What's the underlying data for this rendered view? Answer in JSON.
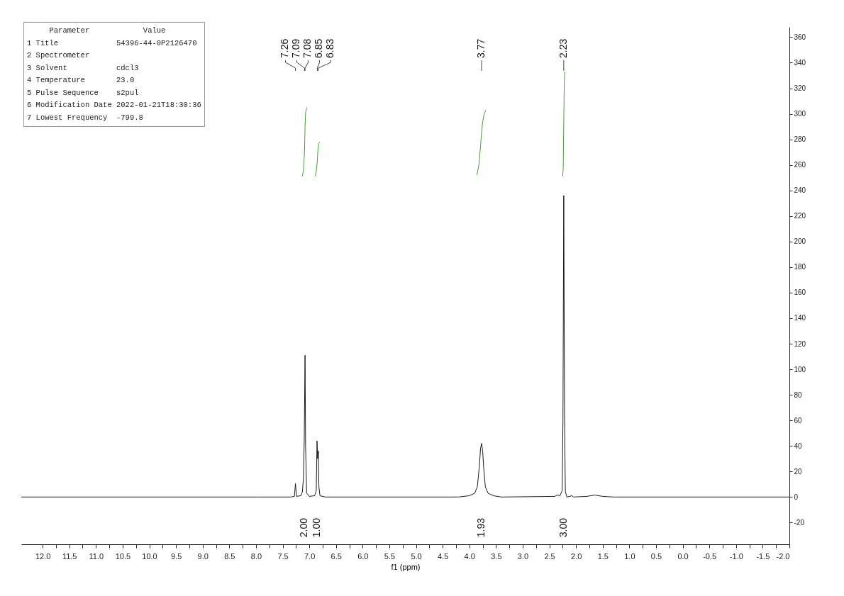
{
  "chart_data": {
    "type": "line",
    "xlabel": "f1 (ppm)",
    "xlim": [
      12.4,
      -2.0
    ],
    "ylim": [
      -37,
      368
    ],
    "xticks": [
      {
        "value": 12,
        "label": "12.0"
      },
      {
        "value": 11.75,
        "label": null
      },
      {
        "value": 11.5,
        "label": "11.5"
      },
      {
        "value": 11.25,
        "label": null
      },
      {
        "value": 11,
        "label": "11.0"
      },
      {
        "value": 10.75,
        "label": null
      },
      {
        "value": 10.5,
        "label": "10.5"
      },
      {
        "value": 10.25,
        "label": null
      },
      {
        "value": 10,
        "label": "10.0"
      },
      {
        "value": 9.75,
        "label": null
      },
      {
        "value": 9.5,
        "label": "9.5"
      },
      {
        "value": 9.25,
        "label": null
      },
      {
        "value": 9,
        "label": "9.0"
      },
      {
        "value": 8.75,
        "label": null
      },
      {
        "value": 8.5,
        "label": "8.5"
      },
      {
        "value": 8.25,
        "label": null
      },
      {
        "value": 8,
        "label": "8.0"
      },
      {
        "value": 7.75,
        "label": null
      },
      {
        "value": 7.5,
        "label": "7.5"
      },
      {
        "value": 7.25,
        "label": null
      },
      {
        "value": 7,
        "label": "7.0"
      },
      {
        "value": 6.75,
        "label": null
      },
      {
        "value": 6.5,
        "label": "6.5"
      },
      {
        "value": 6.25,
        "label": null
      },
      {
        "value": 6,
        "label": "6.0"
      },
      {
        "value": 5.75,
        "label": null
      },
      {
        "value": 5.5,
        "label": "5.5"
      },
      {
        "value": 5.25,
        "label": null
      },
      {
        "value": 5,
        "label": "5.0"
      },
      {
        "value": 4.75,
        "label": null
      },
      {
        "value": 4.5,
        "label": "4.5"
      },
      {
        "value": 4.25,
        "label": null
      },
      {
        "value": 4,
        "label": "4.0"
      },
      {
        "value": 3.75,
        "label": null
      },
      {
        "value": 3.5,
        "label": "3.5"
      },
      {
        "value": 3.25,
        "label": null
      },
      {
        "value": 3,
        "label": "3.0"
      },
      {
        "value": 2.75,
        "label": null
      },
      {
        "value": 2.5,
        "label": "2.5"
      },
      {
        "value": 2.25,
        "label": null
      },
      {
        "value": 2,
        "label": "2.0"
      },
      {
        "value": 1.75,
        "label": null
      },
      {
        "value": 1.5,
        "label": "1.5"
      },
      {
        "value": 1.25,
        "label": null
      },
      {
        "value": 1,
        "label": "1.0"
      },
      {
        "value": 0.75,
        "label": null
      },
      {
        "value": 0.5,
        "label": "0.5"
      },
      {
        "value": 0.25,
        "label": null
      },
      {
        "value": 0,
        "label": "0.0"
      },
      {
        "value": -0.25,
        "label": null
      },
      {
        "value": -0.5,
        "label": "-0.5"
      },
      {
        "value": -0.75,
        "label": null
      },
      {
        "value": -1,
        "label": "-1.0"
      },
      {
        "value": -1.25,
        "label": null
      },
      {
        "value": -1.5,
        "label": "-1.5"
      },
      {
        "value": -1.75,
        "label": null
      },
      {
        "value": -2,
        "label": "-2.0"
      }
    ],
    "yticks": [
      -20,
      0,
      20,
      40,
      60,
      80,
      100,
      120,
      140,
      160,
      180,
      200,
      220,
      240,
      260,
      280,
      300,
      320,
      340,
      360
    ],
    "grid": false,
    "series": [
      {
        "color": "#1a1a1a",
        "x": [
          12.4,
          8.0,
          7.35,
          7.28,
          7.26,
          7.24,
          7.16,
          7.13,
          7.11,
          7.095,
          7.08,
          7.07,
          7.05,
          7.0,
          6.9,
          6.87,
          6.855,
          6.845,
          6.83,
          6.82,
          6.8,
          6.7,
          4.2,
          4.0,
          3.9,
          3.85,
          3.81,
          3.79,
          3.77,
          3.75,
          3.73,
          3.7,
          3.65,
          3.55,
          3.4,
          2.4,
          2.35,
          2.3,
          2.26,
          2.245,
          2.23,
          2.215,
          2.2,
          2.17,
          2.07,
          2.05,
          1.8,
          1.65,
          1.5,
          1.3,
          -2.0
        ],
        "values": [
          0,
          0,
          0,
          0.5,
          10.5,
          0.5,
          1,
          4,
          15,
          45,
          111,
          40,
          3,
          0.5,
          1,
          5,
          44,
          30,
          36,
          8,
          1,
          0,
          0,
          1,
          3,
          8,
          25,
          38,
          42,
          36,
          22,
          8,
          3,
          1,
          0,
          0.5,
          1.5,
          1,
          5,
          60,
          236,
          60,
          4,
          0,
          1,
          0,
          0.5,
          1.5,
          0.5,
          0,
          0
        ]
      },
      {
        "type": "line",
        "color": "#4c9a3c",
        "x": [
          7.13,
          7.11,
          7.09,
          7.08,
          7.07,
          7.05
        ],
        "values": [
          251,
          256,
          270,
          290,
          301,
          305
        ]
      },
      {
        "type": "line",
        "color": "#4c9a3c",
        "x": [
          6.89,
          6.87,
          6.85,
          6.84,
          6.83,
          6.81
        ],
        "values": [
          251,
          255,
          263,
          271,
          276,
          278
        ]
      },
      {
        "type": "line",
        "color": "#4c9a3c",
        "x": [
          3.86,
          3.82,
          3.79,
          3.77,
          3.75,
          3.72,
          3.69
        ],
        "values": [
          252,
          260,
          275,
          285,
          294,
          300,
          303
        ]
      },
      {
        "type": "line",
        "color": "#4c9a3c",
        "x": [
          2.25,
          2.24,
          2.235,
          2.23,
          2.225,
          2.22,
          2.21
        ],
        "values": [
          251,
          258,
          275,
          292,
          310,
          325,
          333
        ]
      }
    ],
    "annotations": [
      "     Parameter            Value",
      "1 Title             54396-44-0P2126470",
      "2 Spectrometer",
      "3 Solvent           cdcl3",
      "4 Temperature       23.0",
      "5 Pulse Sequence    s2pul",
      "6 Modification Date 2022-01-21T18:30:36",
      "7 Lowest Frequency  -799.8",
      {
        "text": "7.26",
        "x": 7.26
      },
      {
        "text": "7.09",
        "x": 7.09
      },
      {
        "text": "7.08",
        "x": 7.08
      },
      {
        "text": "6.85",
        "x": 6.85
      },
      {
        "text": "6.83",
        "x": 6.83
      },
      {
        "text": "3.77",
        "x": 3.77
      },
      {
        "text": "2.23",
        "x": 2.23
      },
      "2.00",
      "1.00",
      "1.93",
      "3.00"
    ]
  }
}
